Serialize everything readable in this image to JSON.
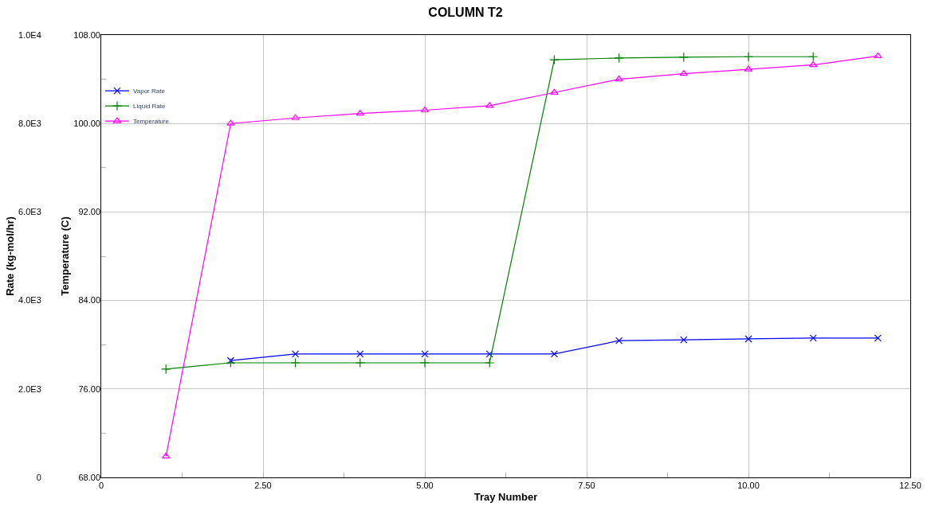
{
  "chart_data": {
    "type": "line",
    "title": "COLUMN T2",
    "xlabel": "Tray Number",
    "ylabel": "Rate (kg-mol/hr)",
    "y2label": "Temperature (C)",
    "xlim": [
      0,
      12.5
    ],
    "xticks": [
      {
        "value": 0,
        "label": "0"
      },
      {
        "value": 1.25,
        "label": null
      },
      {
        "value": 2.5,
        "label": "2.50"
      },
      {
        "value": 3.75,
        "label": null
      },
      {
        "value": 5,
        "label": "5.00"
      },
      {
        "value": 6.25,
        "label": null
      },
      {
        "value": 7.5,
        "label": "7.50"
      },
      {
        "value": 8.75,
        "label": null
      },
      {
        "value": 10,
        "label": "10.00"
      },
      {
        "value": 11.25,
        "label": null
      },
      {
        "value": 12.5,
        "label": "12.50"
      }
    ],
    "ylim": [
      0,
      10000
    ],
    "yticks": [
      {
        "value": 0,
        "label": "0"
      },
      {
        "value": 1000,
        "label": null
      },
      {
        "value": 2000,
        "label": "2.0E3"
      },
      {
        "value": 3000,
        "label": null
      },
      {
        "value": 4000,
        "label": "4.0E3"
      },
      {
        "value": 5000,
        "label": null
      },
      {
        "value": 6000,
        "label": "6.0E3"
      },
      {
        "value": 7000,
        "label": null
      },
      {
        "value": 8000,
        "label": "8.0E3"
      },
      {
        "value": 9000,
        "label": null
      },
      {
        "value": 10000,
        "label": "1.0E4"
      }
    ],
    "y2lim": [
      68,
      108
    ],
    "y2ticks": [
      {
        "value": 68,
        "label": "68.00"
      },
      {
        "value": 76,
        "label": "76.00"
      },
      {
        "value": 84,
        "label": "84.00"
      },
      {
        "value": 92,
        "label": "92.00"
      },
      {
        "value": 100,
        "label": "100.00"
      },
      {
        "value": 108,
        "label": "108.00"
      }
    ],
    "grid": true,
    "legend": "top left",
    "line_style": "solid",
    "series": [
      {
        "name": "Vapor Rate",
        "color": "#0000ff",
        "marker": "cross",
        "x": [
          2,
          3,
          4,
          5,
          6,
          7,
          8,
          9,
          10,
          11,
          12
        ],
        "values": [
          2640,
          2790,
          2790,
          2790,
          2790,
          2790,
          3090,
          3110,
          3130,
          3150,
          3150
        ]
      },
      {
        "name": "Liquid Rate",
        "color": "#008000",
        "marker": "plus",
        "x": [
          1,
          2,
          3,
          4,
          5,
          6,
          7,
          8,
          9,
          10,
          11
        ],
        "values": [
          2450,
          2590,
          2590,
          2590,
          2590,
          2590,
          9440,
          9480,
          9500,
          9510,
          9510
        ]
      },
      {
        "name": "Temperature",
        "color": "#ff00ff",
        "marker": "triangle",
        "axis": "y2",
        "x": [
          1,
          2,
          3,
          4,
          5,
          6,
          7,
          8,
          9,
          10,
          11,
          12
        ],
        "values": [
          69.9,
          100.0,
          100.5,
          100.9,
          101.2,
          101.6,
          102.8,
          104.0,
          104.5,
          104.9,
          105.3,
          106.1
        ]
      }
    ]
  }
}
